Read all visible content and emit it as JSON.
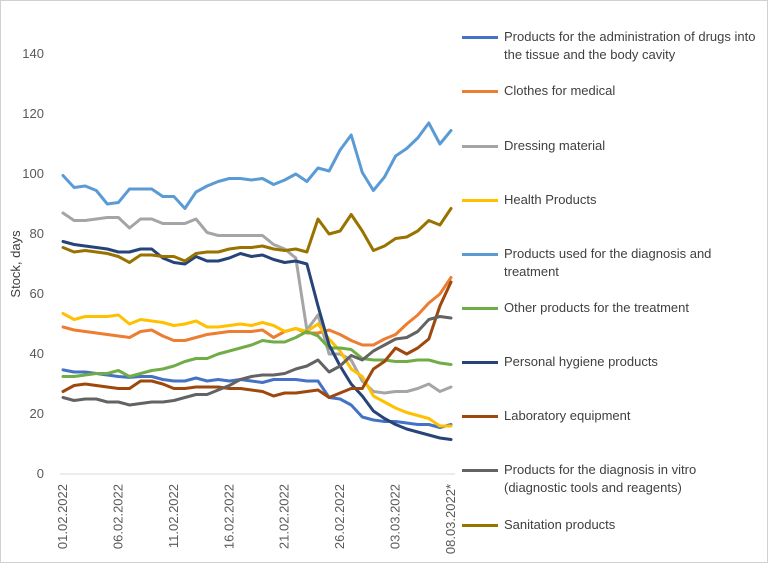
{
  "chart_data": {
    "type": "line",
    "ylabel": "Stock, days",
    "ylim": [
      0,
      140
    ],
    "yticks": [
      0,
      20,
      40,
      60,
      80,
      100,
      120,
      140
    ],
    "grid": false,
    "legend_position": "right",
    "x": [
      "01.02.2022",
      "02.02.2022",
      "03.02.2022",
      "04.02.2022",
      "05.02.2022",
      "06.02.2022",
      "07.02.2022",
      "08.02.2022",
      "09.02.2022",
      "10.02.2022",
      "11.02.2022",
      "12.02.2022",
      "13.02.2022",
      "14.02.2022",
      "15.02.2022",
      "16.02.2022",
      "17.02.2022",
      "18.02.2022",
      "19.02.2022",
      "20.02.2022",
      "21.02.2022",
      "22.02.2022",
      "23.02.2022",
      "24.02.2022",
      "25.02.2022",
      "26.02.2022",
      "27.02.2022",
      "28.02.2022",
      "01.03.2022",
      "02.03.2022",
      "03.03.2022",
      "04.03.2022",
      "05.03.2022",
      "06.03.2022",
      "07.03.2022",
      "08.03.2022*"
    ],
    "xtick_labels": [
      "01.02.2022",
      "06.02.2022",
      "11.02.2022",
      "16.02.2022",
      "21.02.2022",
      "26.02.2022",
      "03.03.2022",
      "08.03.2022*"
    ],
    "xtick_indices": [
      0,
      5,
      10,
      15,
      20,
      25,
      30,
      35
    ],
    "series": [
      {
        "name": "Products for the administration of drugs into the tissue and the body cavity",
        "color": "#4472C4",
        "values": [
          34.7,
          34,
          34,
          33.5,
          33,
          32.5,
          32.2,
          32.5,
          32.5,
          31.5,
          31,
          31,
          32,
          31,
          31.5,
          31,
          31.5,
          31,
          30.5,
          31.5,
          31.5,
          31.5,
          31,
          31,
          25.5,
          25,
          23,
          19,
          18,
          17.5,
          17.5,
          17,
          16.5,
          16.5,
          15.5,
          16.5
        ]
      },
      {
        "name": "Clothes for medical",
        "color": "#ED7D31",
        "values": [
          49,
          48,
          47.5,
          47,
          46.5,
          46,
          45.5,
          47.5,
          48,
          46,
          44.5,
          44.5,
          45.5,
          46.5,
          47,
          47.5,
          47.5,
          47.5,
          48,
          45.5,
          47.5,
          48.5,
          47,
          47,
          48,
          46.5,
          44.5,
          43,
          43,
          45,
          46.5,
          50,
          53,
          57,
          60,
          65.5
        ]
      },
      {
        "name": "Dressing material",
        "color": "#A5A5A5",
        "values": [
          87,
          84.5,
          84.5,
          85,
          85.5,
          85.5,
          82,
          85,
          85,
          83.5,
          83.5,
          83.5,
          85,
          80.5,
          79.5,
          79.5,
          79.5,
          79.5,
          79.5,
          76.5,
          75,
          72,
          48,
          53,
          40,
          40,
          38,
          31,
          27.5,
          27,
          27.5,
          27.5,
          28.5,
          30,
          27.5,
          29
        ]
      },
      {
        "name": "Health Products",
        "color": "#FFC000",
        "values": [
          53.5,
          51.5,
          52.5,
          52.5,
          52.5,
          53,
          50,
          51.5,
          51,
          50.5,
          49.5,
          50,
          51,
          49,
          49,
          49.5,
          50,
          49.5,
          50.5,
          49.5,
          47.5,
          48.5,
          47.5,
          50,
          45,
          41,
          35,
          32.5,
          26,
          24,
          22,
          20.5,
          19.5,
          18.5,
          16,
          16
        ]
      },
      {
        "name": "Products used for the diagnosis and treatment",
        "color": "#5B9BD5",
        "values": [
          99.5,
          95.5,
          96,
          94.5,
          90,
          90.5,
          95,
          95,
          95,
          92.5,
          92.5,
          88.5,
          94,
          96,
          97.5,
          98.5,
          98.5,
          98,
          98.5,
          96.5,
          98,
          100,
          97.5,
          102,
          101,
          108,
          113,
          100.5,
          94.5,
          99,
          106,
          108.5,
          112,
          117,
          110,
          114.5
        ]
      },
      {
        "name": "Other products for the treatment",
        "color": "#70AD47",
        "values": [
          32.5,
          32.5,
          33,
          33.5,
          33.5,
          34.5,
          32.5,
          33.5,
          34.5,
          35,
          36,
          37.5,
          38.5,
          38.5,
          40,
          41,
          42,
          43,
          44.5,
          44,
          44,
          45.5,
          47.5,
          46,
          42,
          42,
          41.5,
          38.5,
          38,
          38,
          37.5,
          37.5,
          38,
          38,
          37,
          36.5
        ]
      },
      {
        "name": "Personal hygiene products",
        "color": "#264478",
        "values": [
          77.5,
          76.5,
          76,
          75.5,
          75,
          74,
          74,
          75,
          75,
          72,
          70.5,
          70,
          72.5,
          71,
          71,
          72,
          73.5,
          72.5,
          73,
          71.5,
          70.5,
          71,
          70,
          56,
          43,
          36,
          30,
          26,
          21,
          18.5,
          16.5,
          15,
          14,
          13,
          12,
          11.5
        ]
      },
      {
        "name": "Laboratory equipment",
        "color": "#9E480E",
        "values": [
          27.5,
          29.5,
          30,
          29.5,
          29,
          28.5,
          28.5,
          31,
          31,
          30,
          28.5,
          28.5,
          29,
          29,
          29,
          28.5,
          28.5,
          28,
          27.5,
          26,
          27,
          27,
          27.5,
          28,
          25.5,
          27,
          28.5,
          28.5,
          35,
          37.5,
          42,
          40,
          42,
          45,
          56,
          64
        ]
      },
      {
        "name": "Products for the diagnosis in vitro (diagnostic tools and reagents)",
        "color": "#636363",
        "values": [
          25.5,
          24.5,
          25,
          25,
          24,
          24,
          23,
          23.5,
          24,
          24,
          24.5,
          25.5,
          26.5,
          26.5,
          28,
          29.5,
          31.5,
          32.5,
          33,
          33,
          33.5,
          35,
          36,
          38,
          34,
          36,
          39.5,
          38,
          41,
          43,
          45,
          45.5,
          47.5,
          51.5,
          52.5,
          52
        ]
      },
      {
        "name": "Sanitation products",
        "color": "#997300",
        "values": [
          75.5,
          74,
          74.5,
          74,
          73.5,
          72.5,
          70.5,
          73,
          73,
          72.5,
          72.5,
          71,
          73.5,
          74,
          74,
          75,
          75.5,
          75.5,
          76,
          75,
          74.5,
          75,
          74,
          85,
          80,
          81,
          86.5,
          81,
          74.5,
          76,
          78.5,
          79,
          81,
          84.5,
          83,
          88.5
        ]
      }
    ]
  }
}
